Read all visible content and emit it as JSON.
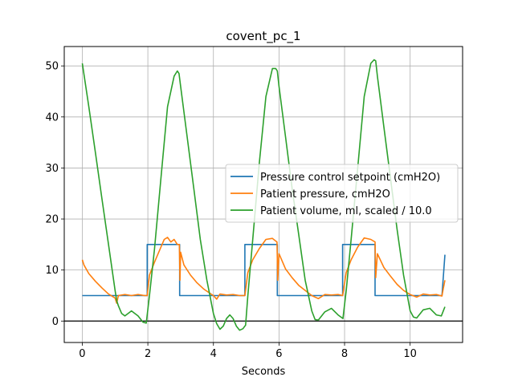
{
  "chart_data": {
    "type": "line",
    "title": "covent_pc_1",
    "xlabel": "Seconds",
    "ylabel": "",
    "xlim": [
      -0.55,
      11.6
    ],
    "ylim": [
      -4.2,
      53.8
    ],
    "xticks": [
      0,
      2,
      4,
      6,
      8,
      10
    ],
    "yticks": [
      0,
      10,
      20,
      30,
      40,
      50
    ],
    "grid": true,
    "legend_position": "center-right",
    "series": [
      {
        "name": "Pressure control setpoint (cmH2O)",
        "color": "#1f77b4",
        "x": [
          0,
          1.98,
          1.98,
          2.97,
          2.97,
          4.96,
          4.96,
          5.95,
          5.95,
          7.94,
          7.94,
          8.93,
          8.93,
          10.97,
          11.06
        ],
        "y": [
          5,
          5,
          15,
          15,
          5,
          5,
          15,
          15,
          5,
          5,
          15,
          15,
          5,
          5,
          13
        ]
      },
      {
        "name": "Patient pressure, cmH2O",
        "color": "#ff7f0e",
        "x": [
          0,
          0.05,
          0.2,
          0.4,
          0.6,
          0.8,
          1.0,
          1.05,
          1.1,
          1.3,
          1.5,
          1.7,
          1.9,
          1.98,
          2.05,
          2.2,
          2.4,
          2.5,
          2.6,
          2.7,
          2.8,
          2.9,
          2.96,
          2.98,
          3.0,
          3.1,
          3.3,
          3.5,
          3.7,
          3.9,
          4.0,
          4.1,
          4.2,
          4.4,
          4.6,
          4.8,
          4.96,
          5.05,
          5.2,
          5.4,
          5.6,
          5.8,
          5.94,
          5.96,
          6.0,
          6.2,
          6.4,
          6.6,
          6.8,
          7.0,
          7.2,
          7.4,
          7.6,
          7.8,
          7.94,
          8.05,
          8.2,
          8.4,
          8.6,
          8.8,
          8.93,
          8.95,
          9.0,
          9.2,
          9.4,
          9.6,
          9.8,
          10.0,
          10.2,
          10.4,
          10.6,
          10.8,
          10.97,
          11.0,
          11.06
        ],
        "y": [
          12,
          11,
          9.3,
          7.8,
          6.5,
          5.3,
          4.5,
          3.5,
          5.0,
          5.2,
          5.0,
          5.2,
          5.0,
          5.0,
          9.0,
          11.5,
          14.5,
          16.0,
          16.4,
          15.5,
          16.0,
          15.0,
          15.0,
          8.0,
          13.5,
          11.0,
          9.0,
          7.5,
          6.3,
          5.4,
          5.0,
          4.3,
          5.3,
          5.1,
          5.2,
          5.0,
          5.0,
          9.5,
          12.0,
          14.2,
          16.0,
          16.2,
          15.5,
          8.0,
          13.2,
          10.2,
          8.5,
          7.0,
          6.0,
          5.0,
          4.4,
          5.2,
          5.1,
          5.2,
          5.0,
          9.5,
          12.0,
          14.5,
          16.3,
          16.0,
          15.5,
          8.5,
          13.2,
          10.5,
          8.8,
          7.2,
          6.0,
          5.2,
          4.7,
          5.3,
          5.1,
          5.2,
          4.9,
          6.0,
          8.0
        ]
      },
      {
        "name": "Patient volume, ml, scaled / 10.0",
        "color": "#2ca02c",
        "x": [
          0,
          0.2,
          0.4,
          0.6,
          0.8,
          1.0,
          1.05,
          1.1,
          1.2,
          1.3,
          1.5,
          1.7,
          1.85,
          1.95,
          2.05,
          2.2,
          2.4,
          2.6,
          2.8,
          2.9,
          2.95,
          3.0,
          3.2,
          3.4,
          3.6,
          3.8,
          4.0,
          4.1,
          4.2,
          4.3,
          4.4,
          4.5,
          4.6,
          4.7,
          4.8,
          4.9,
          4.98,
          5.05,
          5.2,
          5.4,
          5.6,
          5.8,
          5.9,
          5.95,
          6.0,
          6.2,
          6.4,
          6.6,
          6.8,
          7.0,
          7.1,
          7.2,
          7.4,
          7.6,
          7.8,
          7.95,
          8.05,
          8.2,
          8.4,
          8.6,
          8.8,
          8.9,
          8.95,
          9.0,
          9.2,
          9.4,
          9.6,
          9.8,
          10.0,
          10.1,
          10.2,
          10.4,
          10.6,
          10.8,
          10.95,
          11.06
        ],
        "y": [
          50.5,
          42,
          33,
          24,
          15,
          6,
          4,
          3,
          1.5,
          1,
          2,
          1,
          -0.2,
          -0.4,
          5,
          14,
          28,
          42,
          48,
          49,
          48.5,
          46,
          36,
          26,
          16,
          8,
          1.5,
          -0.5,
          -1.6,
          -1,
          0.5,
          1.2,
          0.5,
          -1,
          -1.8,
          -1.5,
          -0.8,
          5,
          16,
          31,
          44,
          49.5,
          49.5,
          49,
          46,
          36,
          26,
          17,
          8,
          2,
          0.3,
          0.2,
          1.8,
          2.5,
          1.2,
          0.5,
          6,
          16,
          30,
          44,
          50.5,
          51.2,
          51,
          48,
          38,
          28,
          18,
          9,
          2,
          0.8,
          0.6,
          2.2,
          2.5,
          1.2,
          1.0,
          2.8
        ]
      }
    ]
  }
}
